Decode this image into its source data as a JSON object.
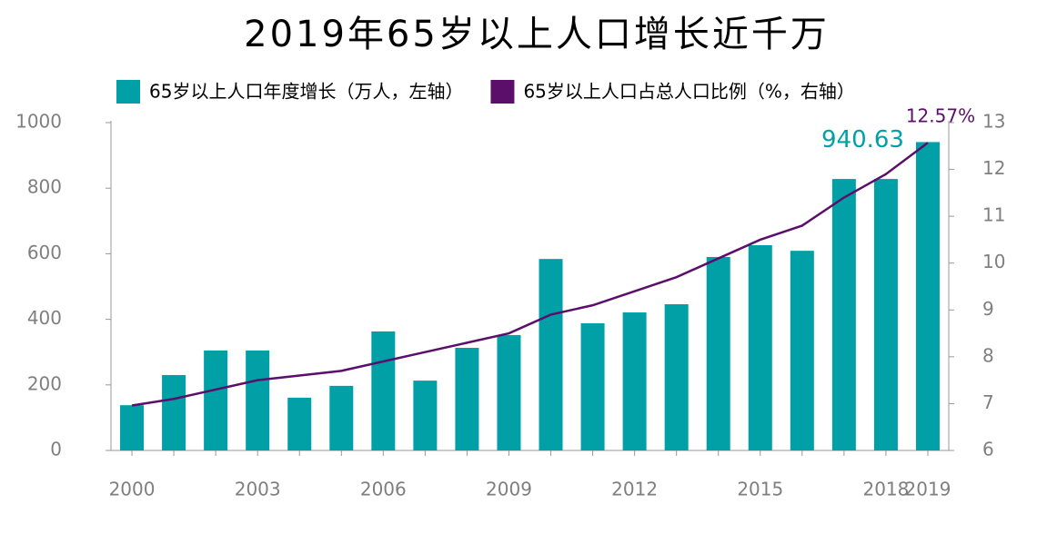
{
  "chart_data": {
    "type": "bar-line",
    "title": "2019年65岁以上人口增长近千万",
    "categories": [
      "2000",
      null,
      null,
      "2003",
      null,
      null,
      "2006",
      null,
      null,
      "2009",
      null,
      null,
      "2012",
      null,
      null,
      "2015",
      null,
      null,
      "2018",
      "2019"
    ],
    "series": [
      {
        "name": "65岁以上人口年度增长（万人，左轴）",
        "type": "bar",
        "color": "#00a0a6",
        "values": [
          138,
          230,
          305,
          305,
          161,
          197,
          363,
          213,
          313,
          352,
          584,
          388,
          421,
          446,
          590,
          626,
          609,
          828,
          828,
          940.63
        ],
        "value_labels": [
          null,
          null,
          null,
          null,
          null,
          null,
          null,
          null,
          null,
          null,
          null,
          null,
          null,
          null,
          null,
          null,
          null,
          null,
          null,
          "940.63"
        ]
      },
      {
        "name": "65岁以上人口占总人口比例（%，右轴）",
        "type": "line",
        "axis": "y2",
        "color": "#5b0f6b",
        "values": [
          6.96,
          7.1,
          7.3,
          7.5,
          7.6,
          7.7,
          7.9,
          8.1,
          8.3,
          8.5,
          8.9,
          9.1,
          9.4,
          9.7,
          10.1,
          10.5,
          10.8,
          11.4,
          11.9,
          12.57
        ],
        "value_labels": [
          null,
          null,
          null,
          null,
          null,
          null,
          null,
          null,
          null,
          null,
          null,
          null,
          null,
          null,
          null,
          null,
          null,
          null,
          null,
          "12.57%"
        ]
      }
    ],
    "ylim": [
      0,
      1000
    ],
    "yticks": [
      0,
      200,
      400,
      600,
      800,
      1000
    ],
    "y2lim": [
      6,
      13
    ],
    "y2ticks": [
      6,
      7,
      8,
      9,
      10,
      11,
      12,
      13
    ],
    "grid": false
  }
}
